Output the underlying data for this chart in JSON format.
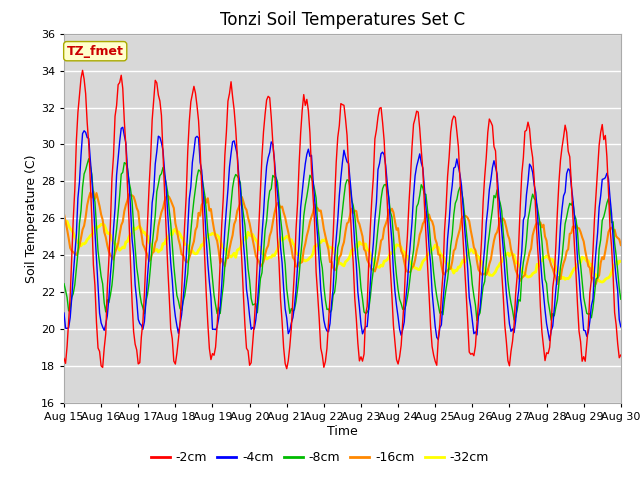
{
  "title": "Tonzi Soil Temperatures Set C",
  "xlabel": "Time",
  "ylabel": "Soil Temperature (C)",
  "ylim": [
    16,
    36
  ],
  "yticks": [
    16,
    18,
    20,
    22,
    24,
    26,
    28,
    30,
    32,
    34,
    36
  ],
  "x_tick_labels": [
    "Aug 15",
    "Aug 16",
    "Aug 17",
    "Aug 18",
    "Aug 19",
    "Aug 20",
    "Aug 21",
    "Aug 22",
    "Aug 23",
    "Aug 24",
    "Aug 25",
    "Aug 26",
    "Aug 27",
    "Aug 28",
    "Aug 29",
    "Aug 30"
  ],
  "colors": {
    "-2cm": "#ff0000",
    "-4cm": "#0000ff",
    "-8cm": "#00bb00",
    "-16cm": "#ff8800",
    "-32cm": "#ffff00"
  },
  "legend_labels": [
    "-2cm",
    "-4cm",
    "-8cm",
    "-16cm",
    "-32cm"
  ],
  "annotation_text": "TZ_fmet",
  "annotation_color": "#cc0000",
  "annotation_bg": "#ffffcc",
  "background_color": "#d8d8d8",
  "title_fontsize": 12,
  "label_fontsize": 9,
  "tick_fontsize": 8
}
